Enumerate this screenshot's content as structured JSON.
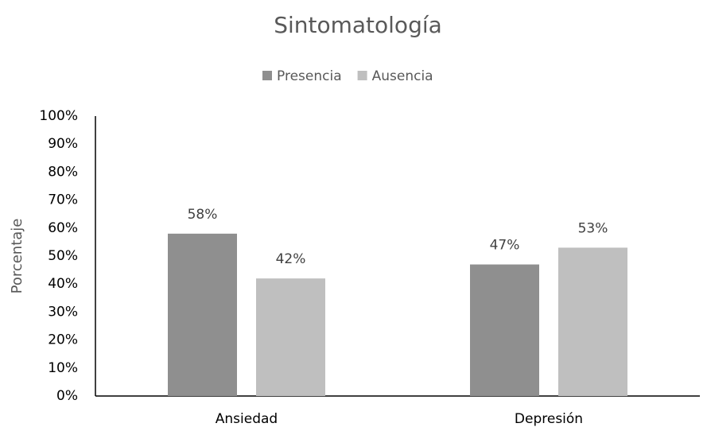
{
  "chart_data": {
    "type": "bar",
    "title": "Sintomatología",
    "y_label": "Porcentaje",
    "categories": [
      "Ansiedad",
      "Depresión"
    ],
    "series": [
      {
        "name": "Presencia",
        "color": "#8f8f8f",
        "values": [
          58,
          47
        ],
        "value_labels": [
          "58%",
          "47%"
        ]
      },
      {
        "name": "Ausencia",
        "color": "#bfbfbf",
        "values": [
          42,
          53
        ],
        "value_labels": [
          "42%",
          "53%"
        ]
      }
    ],
    "ylim": [
      0,
      100
    ],
    "yticks": [
      {
        "value": 0,
        "label": "0%"
      },
      {
        "value": 10,
        "label": "10%"
      },
      {
        "value": 20,
        "label": "20%"
      },
      {
        "value": 30,
        "label": "30%"
      },
      {
        "value": 40,
        "label": "40%"
      },
      {
        "value": 50,
        "label": "50%"
      },
      {
        "value": 60,
        "label": "60%"
      },
      {
        "value": 70,
        "label": "70%"
      },
      {
        "value": 80,
        "label": "80%"
      },
      {
        "value": 90,
        "label": "90%"
      },
      {
        "value": 100,
        "label": "100%"
      }
    ],
    "legend": "top",
    "grid": false
  }
}
